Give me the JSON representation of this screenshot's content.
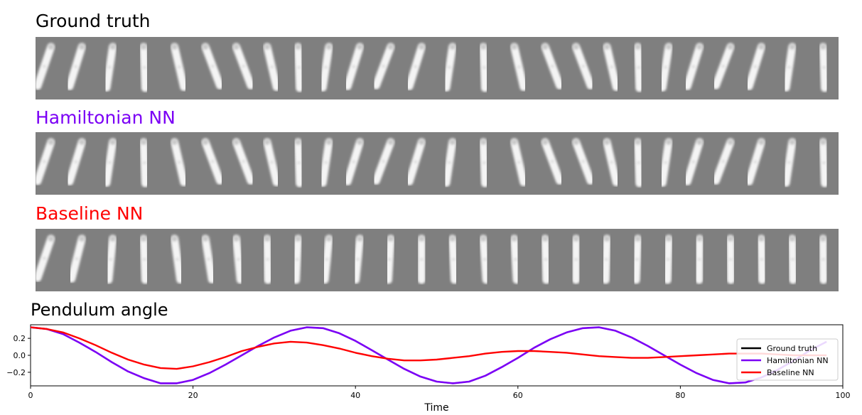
{
  "panels": [
    {
      "title": "Ground truth",
      "title_color": "#000000",
      "angles": [
        -0.33,
        -0.3,
        -0.15,
        0.04,
        0.23,
        0.36,
        0.36,
        0.23,
        0.04,
        -0.15,
        -0.3,
        -0.36,
        -0.3,
        -0.15,
        0.04,
        0.23,
        0.36,
        0.36,
        0.23,
        0.04,
        -0.15,
        -0.3,
        -0.36,
        -0.3,
        -0.15,
        0.04
      ]
    },
    {
      "title": "Hamiltonian NN",
      "title_color": "#7b00f5",
      "angles": [
        -0.33,
        -0.3,
        -0.15,
        0.04,
        0.23,
        0.36,
        0.36,
        0.23,
        0.04,
        -0.15,
        -0.3,
        -0.36,
        -0.3,
        -0.15,
        0.04,
        0.23,
        0.36,
        0.36,
        0.23,
        0.04,
        -0.15,
        -0.3,
        -0.36,
        -0.3,
        -0.15,
        0.04
      ]
    },
    {
      "title": "Baseline NN",
      "title_color": "#ff0000",
      "angles": [
        -0.33,
        -0.25,
        -0.1,
        0.04,
        0.14,
        0.16,
        0.1,
        0.02,
        -0.05,
        -0.1,
        -0.1,
        -0.06,
        0.0,
        0.05,
        0.07,
        0.06,
        0.03,
        0.0,
        -0.03,
        -0.04,
        -0.03,
        -0.01,
        0.01,
        0.02,
        0.02,
        0.01
      ]
    }
  ],
  "chart_data": {
    "type": "line",
    "title": "Pendulum angle",
    "xlabel": "Time",
    "ylabel": "",
    "xlim": [
      0,
      100
    ],
    "ylim": [
      -0.36,
      0.36
    ],
    "xticks": [
      0,
      20,
      40,
      60,
      80,
      100
    ],
    "xtick_labels": [
      "0",
      "20",
      "40",
      "60",
      "80",
      "100"
    ],
    "yticks": [
      0.2,
      0.0,
      -0.2
    ],
    "ytick_labels": [
      "0.2",
      "0.0",
      "−0.2"
    ],
    "legend_position": "lower-right",
    "series": [
      {
        "name": "Ground truth",
        "color": "#000000",
        "x": [
          0,
          2,
          4,
          6,
          8,
          10,
          12,
          14,
          16,
          18,
          20,
          22,
          24,
          26,
          28,
          30,
          32,
          34,
          36,
          38,
          40,
          42,
          44,
          46,
          48,
          50,
          52,
          54,
          56,
          58,
          60,
          62,
          64,
          66,
          68,
          70,
          72,
          74,
          76,
          78,
          80,
          82,
          84,
          86,
          88,
          90,
          92,
          94,
          96,
          98
        ],
        "y": [
          0.33,
          0.31,
          0.25,
          0.15,
          0.04,
          -0.08,
          -0.19,
          -0.27,
          -0.33,
          -0.33,
          -0.29,
          -0.21,
          -0.11,
          0.0,
          0.11,
          0.21,
          0.29,
          0.33,
          0.32,
          0.26,
          0.17,
          0.06,
          -0.05,
          -0.16,
          -0.25,
          -0.31,
          -0.33,
          -0.31,
          -0.24,
          -0.14,
          -0.03,
          0.09,
          0.19,
          0.27,
          0.32,
          0.33,
          0.29,
          0.21,
          0.11,
          0.0,
          -0.11,
          -0.21,
          -0.29,
          -0.33,
          -0.32,
          -0.26,
          -0.17,
          -0.06,
          0.06,
          0.16
        ]
      },
      {
        "name": "Hamiltonian NN",
        "color": "#7b00f5",
        "x": [
          0,
          2,
          4,
          6,
          8,
          10,
          12,
          14,
          16,
          18,
          20,
          22,
          24,
          26,
          28,
          30,
          32,
          34,
          36,
          38,
          40,
          42,
          44,
          46,
          48,
          50,
          52,
          54,
          56,
          58,
          60,
          62,
          64,
          66,
          68,
          70,
          72,
          74,
          76,
          78,
          80,
          82,
          84,
          86,
          88,
          90,
          92,
          94,
          96,
          98
        ],
        "y": [
          0.33,
          0.31,
          0.25,
          0.15,
          0.04,
          -0.08,
          -0.19,
          -0.27,
          -0.33,
          -0.33,
          -0.29,
          -0.21,
          -0.11,
          0.0,
          0.11,
          0.21,
          0.29,
          0.33,
          0.32,
          0.26,
          0.17,
          0.06,
          -0.05,
          -0.16,
          -0.25,
          -0.31,
          -0.33,
          -0.31,
          -0.24,
          -0.14,
          -0.03,
          0.09,
          0.19,
          0.27,
          0.32,
          0.33,
          0.29,
          0.21,
          0.11,
          0.0,
          -0.11,
          -0.21,
          -0.29,
          -0.33,
          -0.32,
          -0.26,
          -0.17,
          -0.06,
          0.06,
          0.16
        ]
      },
      {
        "name": "Baseline NN",
        "color": "#ff0000",
        "x": [
          0,
          2,
          4,
          6,
          8,
          10,
          12,
          14,
          16,
          18,
          20,
          22,
          24,
          26,
          28,
          30,
          32,
          34,
          36,
          38,
          40,
          42,
          44,
          46,
          48,
          50,
          52,
          54,
          56,
          58,
          60,
          62,
          64,
          66,
          68,
          70,
          72,
          74,
          76,
          78,
          80,
          82,
          84,
          86,
          88,
          90,
          92,
          94,
          96,
          98
        ],
        "y": [
          0.33,
          0.31,
          0.27,
          0.2,
          0.12,
          0.03,
          -0.05,
          -0.11,
          -0.15,
          -0.16,
          -0.13,
          -0.08,
          -0.02,
          0.05,
          0.1,
          0.14,
          0.16,
          0.15,
          0.12,
          0.08,
          0.03,
          -0.01,
          -0.04,
          -0.06,
          -0.06,
          -0.05,
          -0.03,
          -0.01,
          0.02,
          0.04,
          0.05,
          0.05,
          0.04,
          0.03,
          0.01,
          -0.01,
          -0.02,
          -0.03,
          -0.03,
          -0.02,
          -0.01,
          0.0,
          0.01,
          0.02,
          0.02,
          0.02,
          0.01,
          0.0,
          0.0,
          0.0
        ]
      }
    ]
  }
}
